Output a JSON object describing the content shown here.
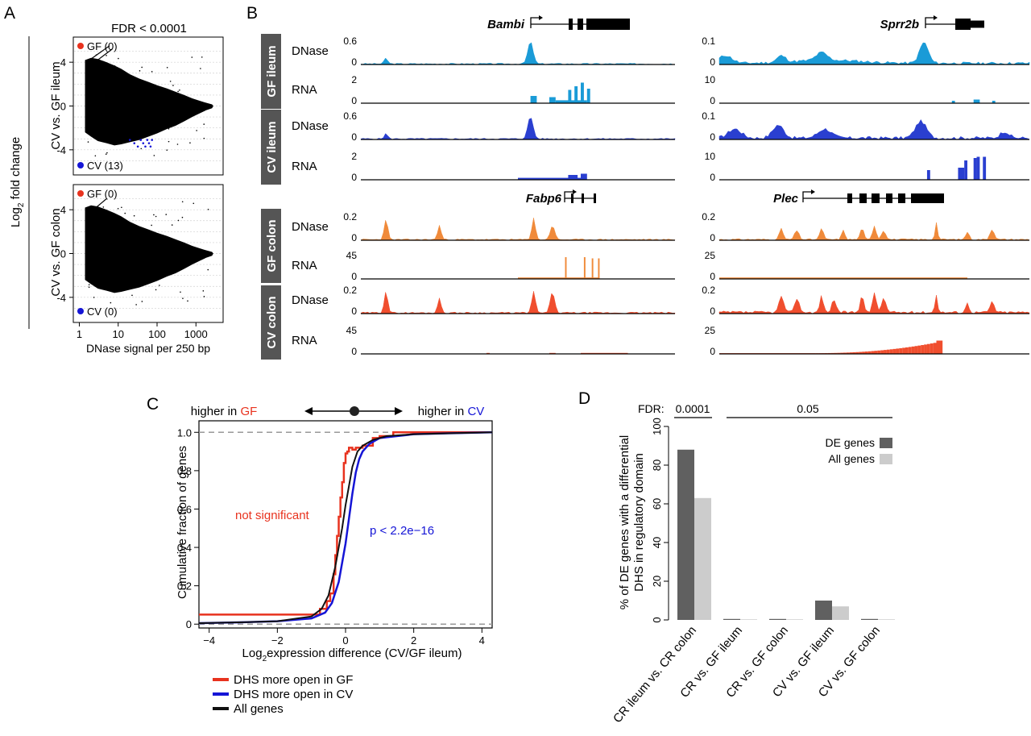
{
  "panels": {
    "a": "A",
    "b": "B",
    "c": "C",
    "d": "D"
  },
  "colors": {
    "gf": "#e8321e",
    "cv": "#1515d6",
    "ileum_gf": "#1a9bd7",
    "ileum_cv": "#2a3fd0",
    "colon_gf": "#f08a3a",
    "colon_cv": "#f04e2e",
    "label_box": "#555555",
    "de_bar": "#606060",
    "all_bar": "#cccccc"
  },
  "chart_data": [
    {
      "id": "A",
      "type": "scatter",
      "title": "FDR < 0.0001",
      "ylabel_main": "Log",
      "ylabel_sub": "2",
      "ylabel_rest": " fold change",
      "xlabel": "DNase signal per 250 bp",
      "x_scale": "log",
      "xlim": [
        0.7,
        5000
      ],
      "xticks": [
        "1",
        "10",
        "100",
        "1000"
      ],
      "xtick_values": [
        1,
        10,
        100,
        1000
      ],
      "panels": [
        {
          "ylabel": "CV vs. GF ileum",
          "ylim": [
            -6,
            6
          ],
          "yticks": [
            "4",
            "0",
            "-4"
          ],
          "ytick_values": [
            4,
            0,
            -4
          ],
          "legend": [
            {
              "label": "GF (0)",
              "color": "#e8321e"
            },
            {
              "label": "CV (13)",
              "color": "#1515d6"
            }
          ]
        },
        {
          "ylabel": "CV vs. GF colon",
          "ylim": [
            -6,
            6
          ],
          "yticks": [
            "4",
            "0",
            "-4"
          ],
          "ytick_values": [
            4,
            0,
            -4
          ],
          "legend": [
            {
              "label": "GF (0)",
              "color": "#e8321e"
            },
            {
              "label": "CV (0)",
              "color": "#1515d6"
            }
          ]
        }
      ]
    },
    {
      "id": "B",
      "type": "area",
      "gene_tracks": [
        {
          "gene": "Bambi",
          "groups": [
            {
              "label": "GF ileum",
              "color": "#1a9bd7",
              "dnase_max": "0.6",
              "rna_max": "2"
            },
            {
              "label": "CV ileum",
              "color": "#2a3fd0",
              "dnase_max": "0.6",
              "rna_max": "2"
            }
          ]
        },
        {
          "gene": "Sprr2b",
          "groups": [
            {
              "label": "GF ileum",
              "color": "#1a9bd7",
              "dnase_max": "0.1",
              "rna_max": "10"
            },
            {
              "label": "CV ileum",
              "color": "#2a3fd0",
              "dnase_max": "0.1",
              "rna_max": "10"
            }
          ]
        },
        {
          "gene": "Fabp6",
          "groups": [
            {
              "label": "GF colon",
              "color": "#f08a3a",
              "dnase_max": "0.2",
              "rna_max": "45"
            },
            {
              "label": "CV colon",
              "color": "#f04e2e",
              "dnase_max": "0.2",
              "rna_max": "45"
            }
          ]
        },
        {
          "gene": "Plec",
          "groups": [
            {
              "label": "GF colon",
              "color": "#f08a3a",
              "dnase_max": "0.2",
              "rna_max": "25"
            },
            {
              "label": "CV colon",
              "color": "#f04e2e",
              "dnase_max": "0.2",
              "rna_max": "25"
            }
          ]
        }
      ],
      "row_labels": {
        "dnase": "DNase",
        "rna": "RNA",
        "zero": "0"
      }
    },
    {
      "id": "C",
      "type": "line",
      "arrow_left": "higher in ",
      "arrow_left_em": "GF",
      "arrow_right": "higher in ",
      "arrow_right_em": "CV",
      "ylabel": "Cumulative fraction of genes",
      "xlabel_main": "Log",
      "xlabel_sub": "2",
      "xlabel_rest": "expression difference (CV/GF ileum)",
      "xlim": [
        -4.3,
        4.3
      ],
      "ylim": [
        -0.02,
        1.06
      ],
      "xticks": [
        "−4",
        "−2",
        "0",
        "2",
        "4"
      ],
      "xtick_values": [
        -4,
        -2,
        0,
        2,
        4
      ],
      "yticks": [
        "0",
        "0.2",
        "0.4",
        "0.6",
        "0.8",
        "1.0"
      ],
      "ytick_values": [
        0,
        0.2,
        0.4,
        0.6,
        0.8,
        1.0
      ],
      "annotation_gf": "not significant",
      "annotation_cv": "p < 2.2e−16",
      "series": [
        {
          "name": "DHS more open in GF",
          "color": "#e8321e",
          "x": [
            -4.3,
            -0.8,
            -0.75,
            -0.55,
            -0.45,
            -0.35,
            -0.3,
            -0.25,
            -0.2,
            -0.15,
            -0.1,
            -0.05,
            0.0,
            0.05,
            0.1,
            0.15,
            0.2,
            0.3,
            0.5,
            0.8,
            1.0,
            1.4,
            4.3
          ],
          "y": [
            0.05,
            0.05,
            0.08,
            0.12,
            0.16,
            0.26,
            0.36,
            0.46,
            0.56,
            0.66,
            0.74,
            0.84,
            0.89,
            0.9,
            0.92,
            0.92,
            0.91,
            0.92,
            0.93,
            0.97,
            0.98,
            1.0,
            1.0
          ]
        },
        {
          "name": "DHS more open in CV",
          "color": "#1515d6",
          "x": [
            -4.3,
            -3.0,
            -2.0,
            -1.0,
            -0.6,
            -0.4,
            -0.2,
            0.0,
            0.1,
            0.2,
            0.3,
            0.4,
            0.5,
            0.7,
            1.0,
            1.5,
            2.0,
            3.0,
            4.3
          ],
          "y": [
            0.005,
            0.01,
            0.015,
            0.03,
            0.06,
            0.11,
            0.22,
            0.42,
            0.55,
            0.68,
            0.79,
            0.86,
            0.9,
            0.94,
            0.97,
            0.98,
            0.99,
            0.995,
            1.0
          ]
        },
        {
          "name": "All genes",
          "color": "#111111",
          "x": [
            -4.3,
            -3.0,
            -2.0,
            -1.0,
            -0.7,
            -0.5,
            -0.3,
            -0.1,
            0.0,
            0.1,
            0.2,
            0.35,
            0.5,
            0.8,
            1.2,
            2.0,
            3.0,
            4.3
          ],
          "y": [
            0.005,
            0.01,
            0.015,
            0.04,
            0.08,
            0.15,
            0.3,
            0.5,
            0.62,
            0.72,
            0.82,
            0.9,
            0.93,
            0.96,
            0.98,
            0.99,
            0.995,
            1.0
          ]
        }
      ]
    },
    {
      "id": "D",
      "type": "bar",
      "fdr_label": "FDR:",
      "fdr_values": [
        "0.0001",
        "0.05"
      ],
      "ylabel_line1": "% of DE genes with a differential",
      "ylabel_line2": "DHS in regulatory domain",
      "ylim": [
        0,
        100
      ],
      "yticks": [
        "0",
        "20",
        "40",
        "60",
        "80",
        "100"
      ],
      "ytick_values": [
        0,
        20,
        40,
        60,
        80,
        100
      ],
      "categories": [
        "CR ileum vs. CR colon",
        "CR vs. GF ileum",
        "CR vs. GF colon",
        "CV vs. GF ileum",
        "CV vs. GF colon"
      ],
      "series": [
        {
          "name": "DE genes",
          "color": "#606060",
          "values": [
            88,
            0.5,
            0.5,
            10,
            0.5
          ]
        },
        {
          "name": "All genes",
          "color": "#cccccc",
          "values": [
            63,
            0.3,
            0.3,
            7,
            0.3
          ]
        }
      ]
    }
  ]
}
